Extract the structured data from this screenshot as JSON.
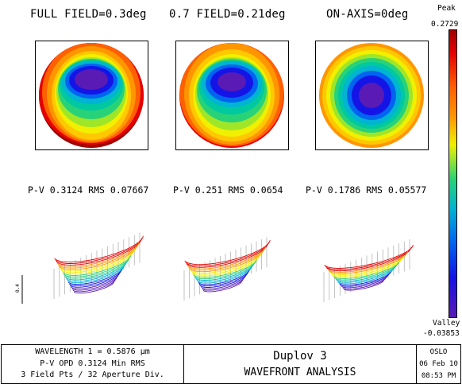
{
  "fields": [
    {
      "title": "FULL FIELD=0.3deg",
      "pv_text": "P-V 0.3124 RMS 0.07667",
      "pv": 0.3124,
      "rms": 0.07667
    },
    {
      "title": "0.7 FIELD=0.21deg",
      "pv_text": "P-V 0.251 RMS 0.0654",
      "pv": 0.251,
      "rms": 0.0654
    },
    {
      "title": "ON-AXIS=0deg",
      "pv_text": "P-V 0.1786 RMS 0.05577",
      "pv": 0.1786,
      "rms": 0.05577
    }
  ],
  "scale": {
    "peak_label": "Peak",
    "peak_value": "0.2729",
    "valley_label": "Valley",
    "valley_value": "-0.03853"
  },
  "axis_tick": "0.4",
  "footer": {
    "wavelength": "WAVELENGTH 1 = 0.5876 µm",
    "opd": "P-V OPD 0.3124  Min RMS",
    "field_pts": "3 Field Pts / 32 Aperture Div.",
    "lens_name": "Duplov 3",
    "analysis": "WAVEFRONT ANALYSIS",
    "program": "OSLO",
    "date": "06 Feb 10",
    "time": "08:53 PM"
  },
  "colors": {
    "violet": "#5a1ab4",
    "blue": "#1414e6",
    "cyan": "#00b4d2",
    "green": "#28d278",
    "yellow": "#f0f000",
    "orange": "#ff9600",
    "red": "#e60000",
    "darkred": "#a00000"
  }
}
